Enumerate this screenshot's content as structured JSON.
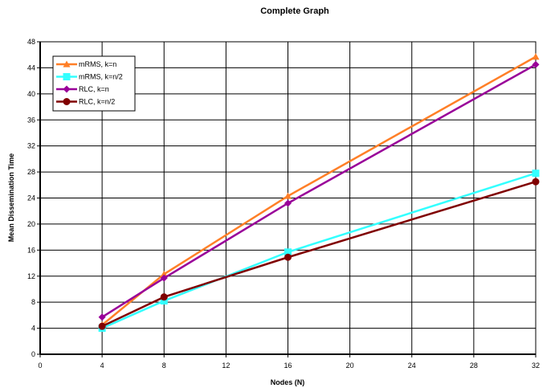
{
  "chart_data": {
    "type": "line",
    "title": "Complete Graph",
    "xlabel": "Nodes (N)",
    "ylabel": "Mean Dissemination Time",
    "xlim": [
      0,
      32
    ],
    "ylim": [
      0,
      48
    ],
    "xticks": [
      0,
      4,
      8,
      12,
      16,
      20,
      24,
      28,
      32
    ],
    "yticks": [
      0,
      4,
      8,
      12,
      16,
      20,
      24,
      28,
      32,
      36,
      40,
      44,
      48
    ],
    "x": [
      4,
      8,
      16,
      32
    ],
    "grid": true,
    "legend_position": "top-left",
    "series": [
      {
        "name": "mRMS, k=n",
        "values": [
          4.5,
          12.3,
          24.3,
          45.7
        ],
        "color": "#ff7f27",
        "marker": "triangle"
      },
      {
        "name": "mRMS, k=n/2",
        "values": [
          4.0,
          8.2,
          15.7,
          27.8
        ],
        "color": "#33ffff",
        "marker": "square"
      },
      {
        "name": "RLC, k=n",
        "values": [
          5.7,
          11.7,
          23.2,
          44.5
        ],
        "color": "#990099",
        "marker": "diamond"
      },
      {
        "name": "RLC, k=n/2",
        "values": [
          4.3,
          8.8,
          14.9,
          26.5
        ],
        "color": "#800000",
        "marker": "circle"
      }
    ]
  }
}
